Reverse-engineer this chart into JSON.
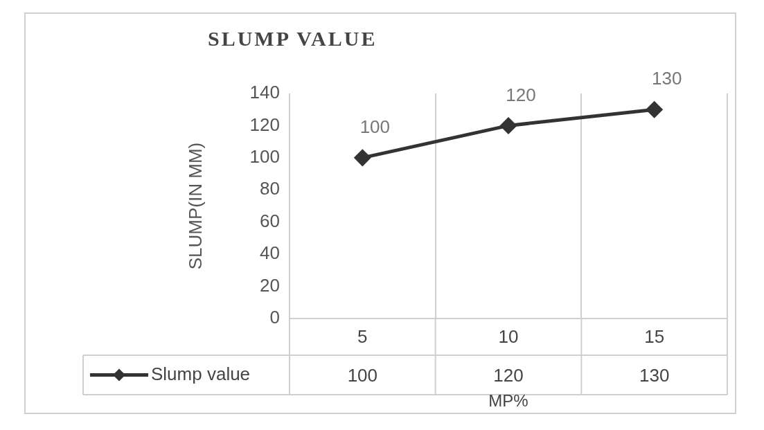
{
  "chart_data": {
    "type": "line",
    "title": "SLUMP VALUE",
    "xlabel": "MP%",
    "ylabel": "SLUMP(IN MM)",
    "categories": [
      "5",
      "10",
      "15"
    ],
    "series": [
      {
        "name": "Slump value",
        "color": "#333333",
        "values": [
          100,
          120,
          130
        ]
      }
    ],
    "annotations": [
      {
        "text": "100",
        "x": "5",
        "y": 100
      },
      {
        "text": "120",
        "x": "10",
        "y": 120
      },
      {
        "text": "130",
        "x": "15",
        "y": 130
      }
    ],
    "ylim": [
      0,
      140
    ],
    "yticks": [
      0,
      20,
      40,
      60,
      80,
      100,
      120,
      140
    ],
    "grid": "x",
    "legend": "bottom",
    "marker": "diamond",
    "line_style": "solid",
    "data_labels": true
  }
}
